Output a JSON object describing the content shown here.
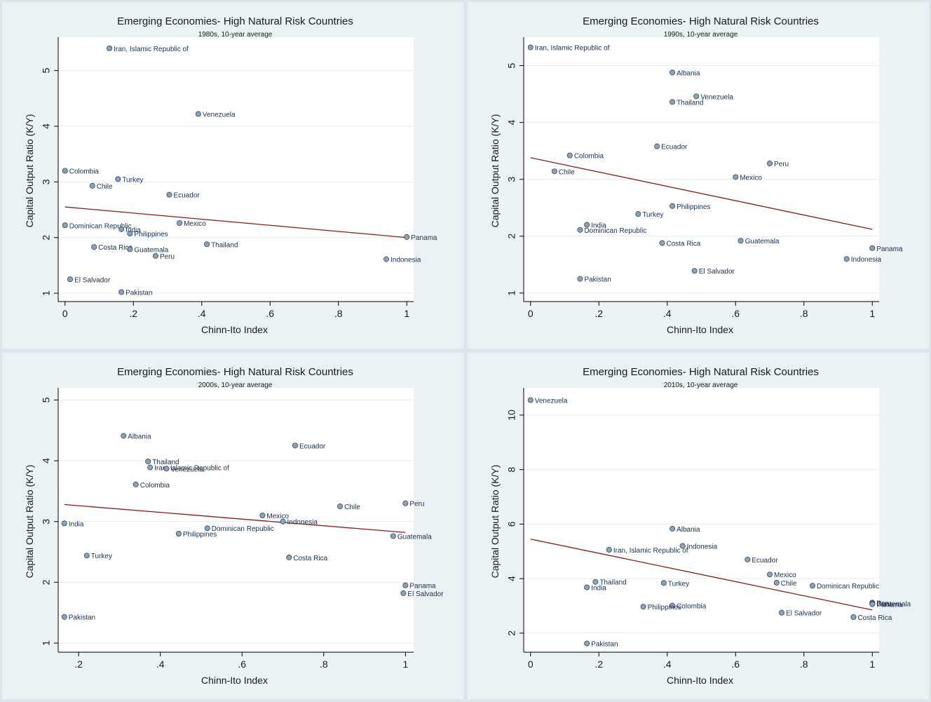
{
  "chart_data": [
    {
      "type": "scatter",
      "title": "Emerging Economies- High Natural Risk Countries",
      "subtitle": "1980s, 10-year average",
      "xlabel": "Chinn-Ito Index",
      "ylabel": "Capital Output Ratio (K/Y)",
      "xlim": [
        -0.02,
        1.02
      ],
      "ylim": [
        0.85,
        5.6
      ],
      "xticks": [
        0,
        0.2,
        0.4,
        0.6,
        0.8,
        1
      ],
      "xtick_labels": [
        "0",
        ".2",
        ".4",
        ".6",
        ".8",
        "1"
      ],
      "yticks": [
        1,
        2,
        3,
        4,
        5
      ],
      "ytick_labels": [
        "1",
        "2",
        "3",
        "4",
        "5"
      ],
      "grid": true,
      "fit_line": {
        "x": [
          0,
          1
        ],
        "y": [
          2.55,
          2.0
        ]
      },
      "points": [
        {
          "label": "Iran, Islamic Republic of",
          "x": 0.13,
          "y": 5.4
        },
        {
          "label": "Venezuela",
          "x": 0.39,
          "y": 4.22
        },
        {
          "label": "Colombia",
          "x": 0.0,
          "y": 3.2
        },
        {
          "label": "Turkey",
          "x": 0.155,
          "y": 3.05
        },
        {
          "label": "Chile",
          "x": 0.08,
          "y": 2.93
        },
        {
          "label": "Ecuador",
          "x": 0.305,
          "y": 2.77
        },
        {
          "label": "Mexico",
          "x": 0.335,
          "y": 2.26
        },
        {
          "label": "Dominican Republic",
          "x": 0.0,
          "y": 2.22
        },
        {
          "label": "India",
          "x": 0.165,
          "y": 2.15
        },
        {
          "label": "Philippines",
          "x": 0.19,
          "y": 2.07
        },
        {
          "label": "Panama",
          "x": 1.0,
          "y": 2.01
        },
        {
          "label": "Thailand",
          "x": 0.415,
          "y": 1.88
        },
        {
          "label": "Costa Rica",
          "x": 0.085,
          "y": 1.83
        },
        {
          "label": "Guatemala",
          "x": 0.19,
          "y": 1.79
        },
        {
          "label": "Peru",
          "x": 0.265,
          "y": 1.67
        },
        {
          "label": "Indonesia",
          "x": 0.94,
          "y": 1.61
        },
        {
          "label": "El Salvador",
          "x": 0.015,
          "y": 1.25
        },
        {
          "label": "Pakistan",
          "x": 0.165,
          "y": 1.02
        }
      ]
    },
    {
      "type": "scatter",
      "title": "Emerging Economies- High Natural Risk Countries",
      "subtitle": "1990s, 10-year average",
      "xlabel": "Chinn-Ito Index",
      "ylabel": "Capital Output Ratio (K/Y)",
      "xlim": [
        -0.02,
        1.02
      ],
      "ylim": [
        0.85,
        5.5
      ],
      "xticks": [
        0,
        0.2,
        0.4,
        0.6,
        0.8,
        1
      ],
      "xtick_labels": [
        "0",
        ".2",
        ".4",
        ".6",
        ".8",
        "1"
      ],
      "yticks": [
        1,
        2,
        3,
        4,
        5
      ],
      "ytick_labels": [
        "1",
        "2",
        "3",
        "4",
        "5"
      ],
      "grid": true,
      "fit_line": {
        "x": [
          0,
          1
        ],
        "y": [
          3.38,
          2.12
        ]
      },
      "points": [
        {
          "label": "Iran, Islamic Republic of",
          "x": 0.0,
          "y": 5.32
        },
        {
          "label": "Albania",
          "x": 0.415,
          "y": 4.88
        },
        {
          "label": "Venezuela",
          "x": 0.485,
          "y": 4.46
        },
        {
          "label": "Thailand",
          "x": 0.415,
          "y": 4.36
        },
        {
          "label": "Ecuador",
          "x": 0.37,
          "y": 3.58
        },
        {
          "label": "Colombia",
          "x": 0.115,
          "y": 3.42
        },
        {
          "label": "Peru",
          "x": 0.7,
          "y": 3.28
        },
        {
          "label": "Chile",
          "x": 0.07,
          "y": 3.14
        },
        {
          "label": "Mexico",
          "x": 0.6,
          "y": 3.04
        },
        {
          "label": "Philippines",
          "x": 0.415,
          "y": 2.53
        },
        {
          "label": "Turkey",
          "x": 0.315,
          "y": 2.39
        },
        {
          "label": "India",
          "x": 0.165,
          "y": 2.2
        },
        {
          "label": "Dominican Republic",
          "x": 0.145,
          "y": 2.11
        },
        {
          "label": "Guatemala",
          "x": 0.615,
          "y": 1.92
        },
        {
          "label": "Costa Rica",
          "x": 0.385,
          "y": 1.88
        },
        {
          "label": "Panama",
          "x": 1.0,
          "y": 1.79
        },
        {
          "label": "Indonesia",
          "x": 0.925,
          "y": 1.6
        },
        {
          "label": "El Salvador",
          "x": 0.48,
          "y": 1.39
        },
        {
          "label": "Pakistan",
          "x": 0.145,
          "y": 1.25
        }
      ]
    },
    {
      "type": "scatter",
      "title": "Emerging Economies- High Natural Risk Countries",
      "subtitle": "2000s, 10-year average",
      "xlabel": "Chinn-Ito Index",
      "ylabel": "Capital Output Ratio (K/Y)",
      "xlim": [
        0.15,
        1.02
      ],
      "ylim": [
        0.85,
        5.2
      ],
      "xticks": [
        0.2,
        0.4,
        0.6,
        0.8,
        1
      ],
      "xtick_labels": [
        ".2",
        ".4",
        ".6",
        ".8",
        "1"
      ],
      "yticks": [
        1,
        2,
        3,
        4,
        5
      ],
      "ytick_labels": [
        "1",
        "2",
        "3",
        "4",
        "5"
      ],
      "grid": true,
      "fit_line": {
        "x": [
          0.165,
          1
        ],
        "y": [
          3.28,
          2.82
        ]
      },
      "points": [
        {
          "label": "Albania",
          "x": 0.31,
          "y": 4.41
        },
        {
          "label": "Ecuador",
          "x": 0.73,
          "y": 4.25
        },
        {
          "label": "Thailand",
          "x": 0.37,
          "y": 3.99
        },
        {
          "label": "Iran, Islamic Republic of",
          "x": 0.375,
          "y": 3.89
        },
        {
          "label": "Venezuela",
          "x": 0.415,
          "y": 3.87
        },
        {
          "label": "Colombia",
          "x": 0.34,
          "y": 3.61
        },
        {
          "label": "Peru",
          "x": 1.0,
          "y": 3.3
        },
        {
          "label": "Chile",
          "x": 0.84,
          "y": 3.25
        },
        {
          "label": "Mexico",
          "x": 0.65,
          "y": 3.1
        },
        {
          "label": "Indonesia",
          "x": 0.7,
          "y": 3.0
        },
        {
          "label": "India",
          "x": 0.165,
          "y": 2.97
        },
        {
          "label": "Dominican Republic",
          "x": 0.515,
          "y": 2.89
        },
        {
          "label": "Philippines",
          "x": 0.445,
          "y": 2.8
        },
        {
          "label": "Guatemala",
          "x": 0.97,
          "y": 2.76
        },
        {
          "label": "Turkey",
          "x": 0.22,
          "y": 2.44
        },
        {
          "label": "Costa Rica",
          "x": 0.715,
          "y": 2.41
        },
        {
          "label": "Panama",
          "x": 1.0,
          "y": 1.95
        },
        {
          "label": "El Salvador",
          "x": 0.995,
          "y": 1.82
        },
        {
          "label": "Pakistan",
          "x": 0.165,
          "y": 1.43
        }
      ]
    },
    {
      "type": "scatter",
      "title": "Emerging Economies- High Natural Risk Countries",
      "subtitle": "2010s, 10-year average",
      "xlabel": "Chinn-Ito Index",
      "ylabel": "Capital Output Ratio (K/Y)",
      "xlim": [
        -0.02,
        1.02
      ],
      "ylim": [
        1.3,
        11.0
      ],
      "xticks": [
        0,
        0.2,
        0.4,
        0.6,
        0.8,
        1
      ],
      "xtick_labels": [
        "0",
        ".2",
        ".4",
        ".6",
        ".8",
        "1"
      ],
      "yticks": [
        2,
        4,
        6,
        8,
        10
      ],
      "ytick_labels": [
        "2",
        "4",
        "6",
        "8",
        "10"
      ],
      "grid": true,
      "fit_line": {
        "x": [
          0,
          1
        ],
        "y": [
          5.45,
          2.85
        ]
      },
      "points": [
        {
          "label": "Venezuela",
          "x": 0.0,
          "y": 10.55
        },
        {
          "label": "Albania",
          "x": 0.415,
          "y": 5.83
        },
        {
          "label": "Indonesia",
          "x": 0.445,
          "y": 5.2
        },
        {
          "label": "Iran, Islamic Republic of",
          "x": 0.23,
          "y": 5.06
        },
        {
          "label": "Ecuador",
          "x": 0.635,
          "y": 4.7
        },
        {
          "label": "Mexico",
          "x": 0.7,
          "y": 4.15
        },
        {
          "label": "Thailand",
          "x": 0.19,
          "y": 3.88
        },
        {
          "label": "Chile",
          "x": 0.72,
          "y": 3.85
        },
        {
          "label": "Turkey",
          "x": 0.39,
          "y": 3.84
        },
        {
          "label": "Dominican Republic",
          "x": 0.825,
          "y": 3.74
        },
        {
          "label": "India",
          "x": 0.165,
          "y": 3.68
        },
        {
          "label": "Peru",
          "x": 1.0,
          "y": 3.12
        },
        {
          "label": "Guatemala",
          "x": 1.0,
          "y": 3.09
        },
        {
          "label": "Panama",
          "x": 1.0,
          "y": 3.06
        },
        {
          "label": "Colombia",
          "x": 0.415,
          "y": 3.01
        },
        {
          "label": "Philippines",
          "x": 0.33,
          "y": 2.97
        },
        {
          "label": "El Salvador",
          "x": 0.735,
          "y": 2.75
        },
        {
          "label": "Costa Rica",
          "x": 0.945,
          "y": 2.59
        },
        {
          "label": "Pakistan",
          "x": 0.165,
          "y": 1.62
        }
      ]
    }
  ],
  "colors": {
    "panel_bg": "#eaf2f3",
    "plot_bg": "#ffffff",
    "grid": "#e6edee",
    "axis": "#000000",
    "marker_fill": "#8fa1b3",
    "marker_stroke": "#2c4a6b",
    "fit_line": "#8b1a1a",
    "label_text": "#1a2f4f"
  }
}
